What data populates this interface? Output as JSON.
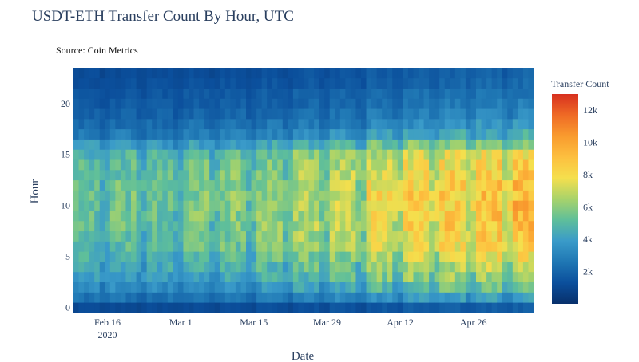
{
  "chart_data": {
    "type": "heatmap",
    "title": "USDT-ETH Transfer Count By Hour, UTC",
    "subtitle": "Source: Coin Metrics",
    "xlabel": "Date",
    "ylabel": "Hour",
    "x_start": "2020-02-10",
    "x_end": "2020-05-07",
    "x_ticks": [
      {
        "date": "2020-02-16",
        "label": "Feb 16",
        "sublabel": "2020"
      },
      {
        "date": "2020-03-01",
        "label": "Mar 1",
        "sublabel": ""
      },
      {
        "date": "2020-03-15",
        "label": "Mar 15",
        "sublabel": ""
      },
      {
        "date": "2020-03-29",
        "label": "Mar 29",
        "sublabel": ""
      },
      {
        "date": "2020-04-12",
        "label": "Apr 12",
        "sublabel": ""
      },
      {
        "date": "2020-04-26",
        "label": "Apr 26",
        "sublabel": ""
      }
    ],
    "y_range": [
      0,
      23
    ],
    "y_ticks": [
      0,
      5,
      10,
      15,
      20
    ],
    "colorbar": {
      "title": "Transfer Count",
      "range": [
        0,
        13000
      ],
      "ticks": [
        2000,
        4000,
        6000,
        8000,
        10000,
        12000
      ],
      "tick_labels": [
        "2k",
        "4k",
        "6k",
        "8k",
        "10k",
        "12k"
      ],
      "colorscale": [
        "#08306b",
        "#0b4f9c",
        "#1f77b4",
        "#3a9bc9",
        "#5fbf9a",
        "#a8d36a",
        "#f5df4d",
        "#fdbf3f",
        "#f99b2e",
        "#ef6a25",
        "#d7301f"
      ]
    },
    "hourly_profile": [
      1500,
      3400,
      4600,
      5500,
      5900,
      6400,
      6800,
      7100,
      7300,
      7400,
      7500,
      7500,
      7400,
      7300,
      7000,
      6500,
      5200,
      3800,
      3100,
      2600,
      2300,
      2100,
      1800,
      1600
    ],
    "weekly_level": [
      0.72,
      0.74,
      0.73,
      0.78,
      0.8,
      0.84,
      0.9,
      0.94,
      1.06,
      1.12,
      1.16,
      1.2,
      1.24
    ],
    "weekend_factor": 0.85
  }
}
